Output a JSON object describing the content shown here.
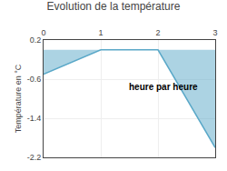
{
  "chart_data": {
    "type": "area",
    "title": "Evolution de la température",
    "xlabel": "heure par heure",
    "ylabel": "Température en °C",
    "x": [
      0,
      1,
      2,
      3
    ],
    "values": [
      -0.5,
      0.0,
      0.0,
      -2.0
    ],
    "color": "#5aa8c8",
    "xlim": [
      0,
      3
    ],
    "ylim": [
      -2.2,
      0.2
    ],
    "xticks": [
      0,
      1,
      2,
      3
    ],
    "yticks": [
      0.2,
      -0.6,
      -1.4,
      -2.2
    ],
    "grid": true
  }
}
